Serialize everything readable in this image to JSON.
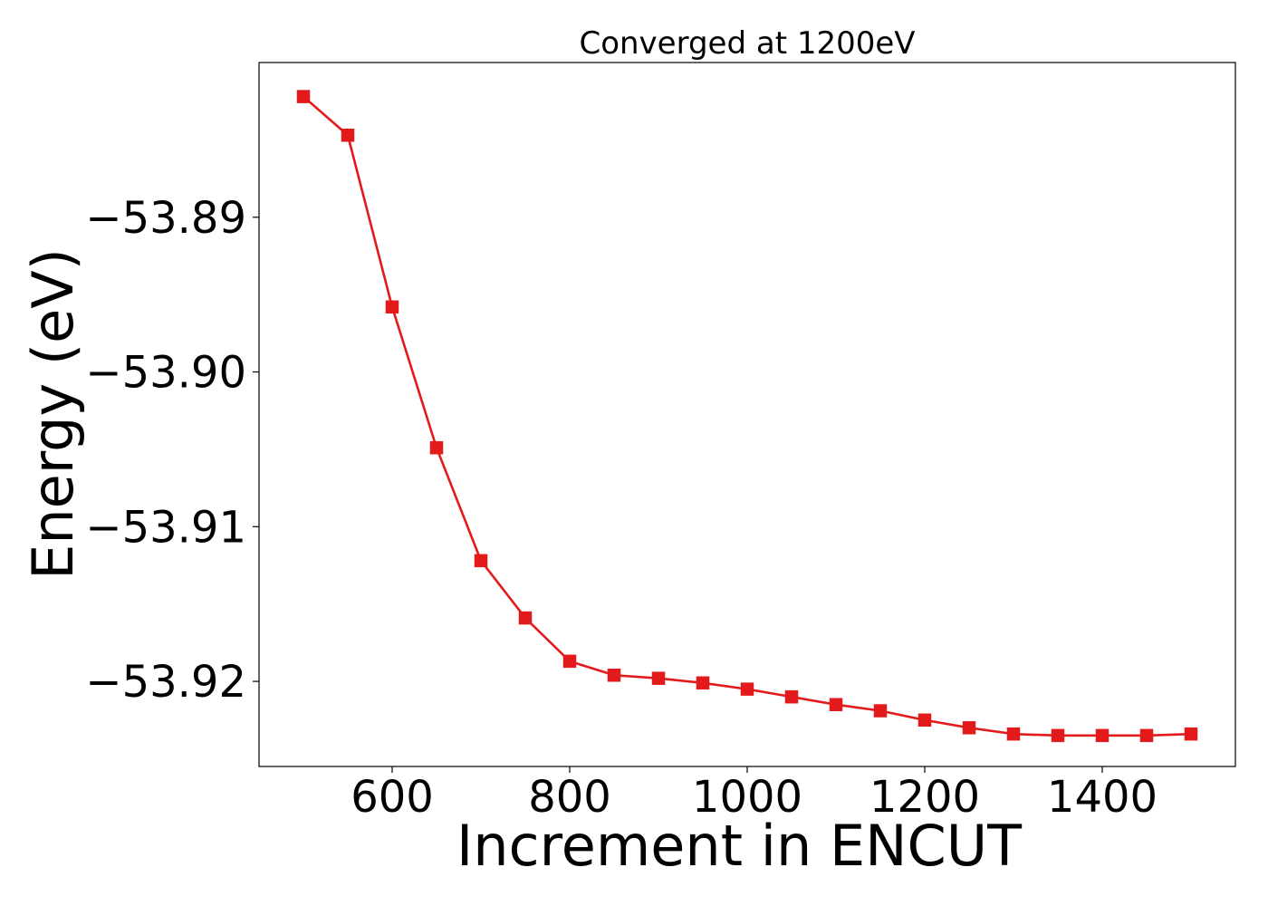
{
  "chart_data": {
    "type": "line",
    "title": "Converged at 1200eV",
    "xlabel": "Increment in ENCUT",
    "ylabel": "Energy (eV)",
    "xlim": [
      450,
      1550
    ],
    "ylim": [
      -53.9255,
      -53.88
    ],
    "xticks": [
      600,
      800,
      1000,
      1200,
      1400
    ],
    "yticks": [
      -53.89,
      -53.9,
      -53.91,
      -53.92
    ],
    "ytick_labels": [
      "−53.89",
      "−53.90",
      "−53.91",
      "−53.92"
    ],
    "grid": false,
    "legend": "none",
    "series": [
      {
        "color": "#e31a1c",
        "marker": "square",
        "x": [
          500,
          550,
          600,
          650,
          700,
          750,
          800,
          850,
          900,
          950,
          1000,
          1050,
          1100,
          1150,
          1200,
          1250,
          1300,
          1350,
          1400,
          1450,
          1500
        ],
        "y": [
          -53.8822,
          -53.8847,
          -53.8958,
          -53.9049,
          -53.9122,
          -53.9159,
          -53.9187,
          -53.9196,
          -53.9198,
          -53.9201,
          -53.9205,
          -53.921,
          -53.9215,
          -53.9219,
          -53.9225,
          -53.923,
          -53.9234,
          -53.9235,
          -53.9235,
          -53.9235,
          -53.9234
        ]
      }
    ]
  }
}
